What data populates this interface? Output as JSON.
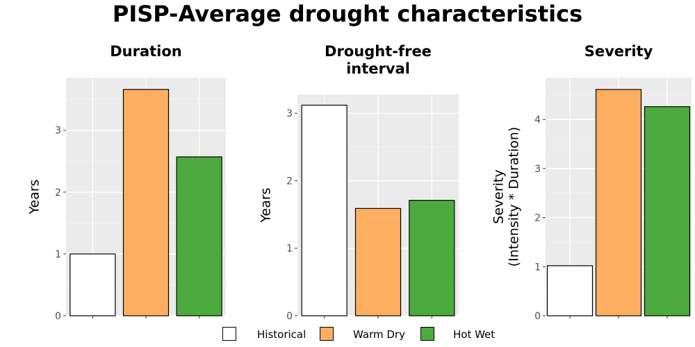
{
  "title": "PISP-Average drought characteristics",
  "legend": [
    {
      "label": "Historical",
      "color": "#ffffff"
    },
    {
      "label": "Warm Dry",
      "color": "#fdae61"
    },
    {
      "label": "Hot Wet",
      "color": "#4daa3f"
    }
  ],
  "chart_data": [
    {
      "type": "bar",
      "title": "Duration",
      "ylabel": "Years",
      "categories": [
        "Historical",
        "Warm Dry",
        "Hot Wet"
      ],
      "values": [
        1.0,
        3.66,
        2.57
      ],
      "ylim": [
        0,
        3.85
      ],
      "yticks": [
        0,
        1,
        2,
        3
      ],
      "colors": [
        "#ffffff",
        "#fdae61",
        "#4daa3f"
      ]
    },
    {
      "type": "bar",
      "title": "Drought-free interval",
      "title_lines": [
        "Drought-free",
        "interval"
      ],
      "ylabel": "Years",
      "categories": [
        "Historical",
        "Warm Dry",
        "Hot Wet"
      ],
      "values": [
        3.12,
        1.59,
        1.71
      ],
      "ylim": [
        0,
        3.28
      ],
      "yticks": [
        0,
        1,
        2,
        3
      ],
      "colors": [
        "#ffffff",
        "#fdae61",
        "#4daa3f"
      ]
    },
    {
      "type": "bar",
      "title": "Severity",
      "ylabel": "Severity\n(Intensity * Duration)",
      "ylabel_lines": [
        "Severity",
        "(Intensity * Duration)"
      ],
      "categories": [
        "Historical",
        "Warm Dry",
        "Hot Wet"
      ],
      "values": [
        1.02,
        4.61,
        4.26
      ],
      "ylim": [
        0,
        4.85
      ],
      "yticks": [
        0,
        1,
        2,
        3,
        4
      ],
      "colors": [
        "#ffffff",
        "#fdae61",
        "#4daa3f"
      ]
    }
  ]
}
